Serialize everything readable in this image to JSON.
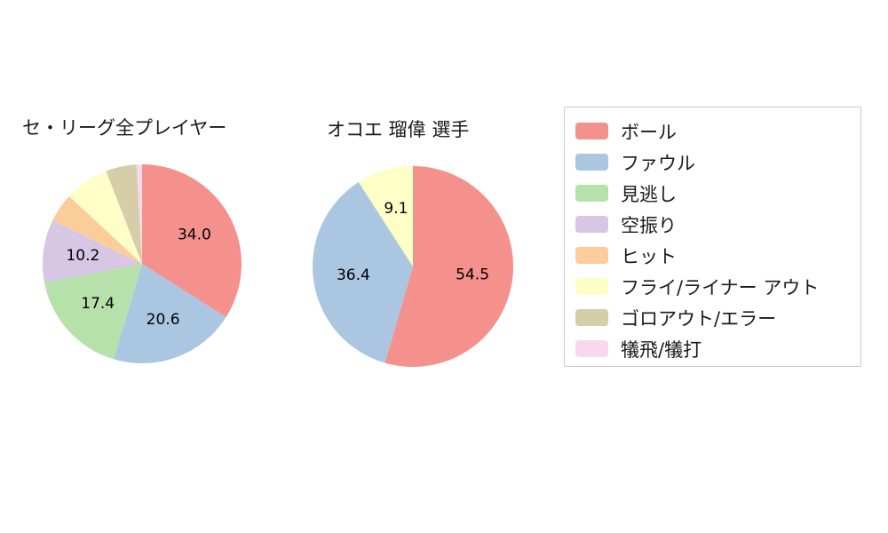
{
  "legend": {
    "items": [
      {
        "label": "ボール",
        "color": "#f5918c"
      },
      {
        "label": "ファウル",
        "color": "#abc6e0"
      },
      {
        "label": "見逃し",
        "color": "#b7e1ab"
      },
      {
        "label": "空振り",
        "color": "#d7c6e4"
      },
      {
        "label": "ヒット",
        "color": "#fbcd9a"
      },
      {
        "label": "フライ/ライナー アウト",
        "color": "#feffc7"
      },
      {
        "label": "ゴロアウト/エラー",
        "color": "#d6cda9"
      },
      {
        "label": "犠飛/犠打",
        "color": "#fad8eb"
      }
    ]
  },
  "chart_data": [
    {
      "type": "pie",
      "title": "セ・リーグ全プレイヤー",
      "start_angle_deg": -90,
      "direction": "clockwise",
      "slices": [
        {
          "category": "ボール",
          "value": 34.0,
          "label": "34.0"
        },
        {
          "category": "ファウル",
          "value": 20.6,
          "label": "20.6"
        },
        {
          "category": "見逃し",
          "value": 17.4,
          "label": "17.4"
        },
        {
          "category": "空振り",
          "value": 10.2,
          "label": "10.2"
        },
        {
          "category": "ヒット",
          "value": 4.7,
          "label": ""
        },
        {
          "category": "フライ/ライナー アウト",
          "value": 7.2,
          "label": ""
        },
        {
          "category": "ゴロアウト/エラー",
          "value": 5.0,
          "label": ""
        },
        {
          "category": "犠飛/犠打",
          "value": 0.9,
          "label": ""
        }
      ]
    },
    {
      "type": "pie",
      "title": "オコエ 瑠偉 選手",
      "start_angle_deg": -90,
      "direction": "clockwise",
      "slices": [
        {
          "category": "ボール",
          "value": 54.5,
          "label": "54.5"
        },
        {
          "category": "ファウル",
          "value": 36.4,
          "label": "36.4"
        },
        {
          "category": "フライ/ライナー アウト",
          "value": 9.1,
          "label": "9.1"
        }
      ]
    }
  ]
}
